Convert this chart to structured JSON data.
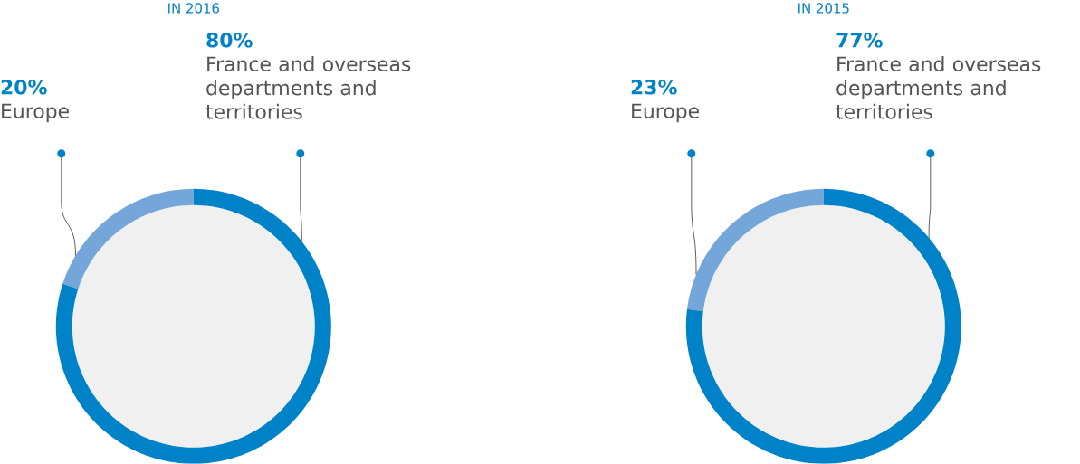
{
  "chart_data": [
    {
      "type": "donut",
      "title": "IN 2016",
      "categories": [
        "Europe",
        "France and overseas departments and territories"
      ],
      "values": [
        20,
        80
      ],
      "value_labels": [
        "20%",
        "80%"
      ],
      "colors": [
        "#74a6da",
        "#0082c8"
      ]
    },
    {
      "type": "donut",
      "title": "IN 2015",
      "categories": [
        "Europe",
        "France and overseas departments and territories"
      ],
      "values": [
        23,
        77
      ],
      "value_labels": [
        "23%",
        "77%"
      ],
      "colors": [
        "#74a6da",
        "#0082c8"
      ]
    }
  ]
}
